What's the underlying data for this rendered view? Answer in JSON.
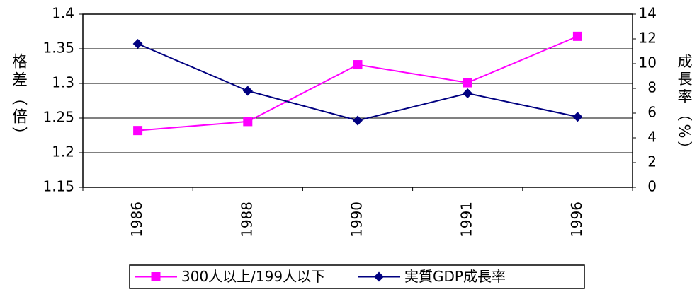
{
  "chart_data": {
    "type": "line",
    "categories": [
      "1986",
      "1988",
      "1990",
      "1991",
      "1996"
    ],
    "ylabel": "格差（倍）",
    "y2label": "成長率（%）",
    "series": [
      {
        "name": "300人以上/199人以下",
        "color": "#ff00ff",
        "marker": "square",
        "values": [
          1.232,
          1.245,
          1.327,
          1.301,
          1.368
        ]
      },
      {
        "name": "実質GDP成長率",
        "color": "#000080",
        "marker": "diamond",
        "axis": "y2",
        "values": [
          11.6,
          7.8,
          5.4,
          7.6,
          5.7
        ]
      }
    ],
    "ylim": [
      1.15,
      1.4
    ],
    "yticks": [
      1.15,
      1.2,
      1.25,
      1.3,
      1.35,
      1.4
    ],
    "y2lim": [
      0,
      14
    ],
    "y2ticks": [
      0,
      2,
      4,
      6,
      8,
      10,
      12,
      14
    ],
    "grid": true,
    "legend": "bottom"
  }
}
